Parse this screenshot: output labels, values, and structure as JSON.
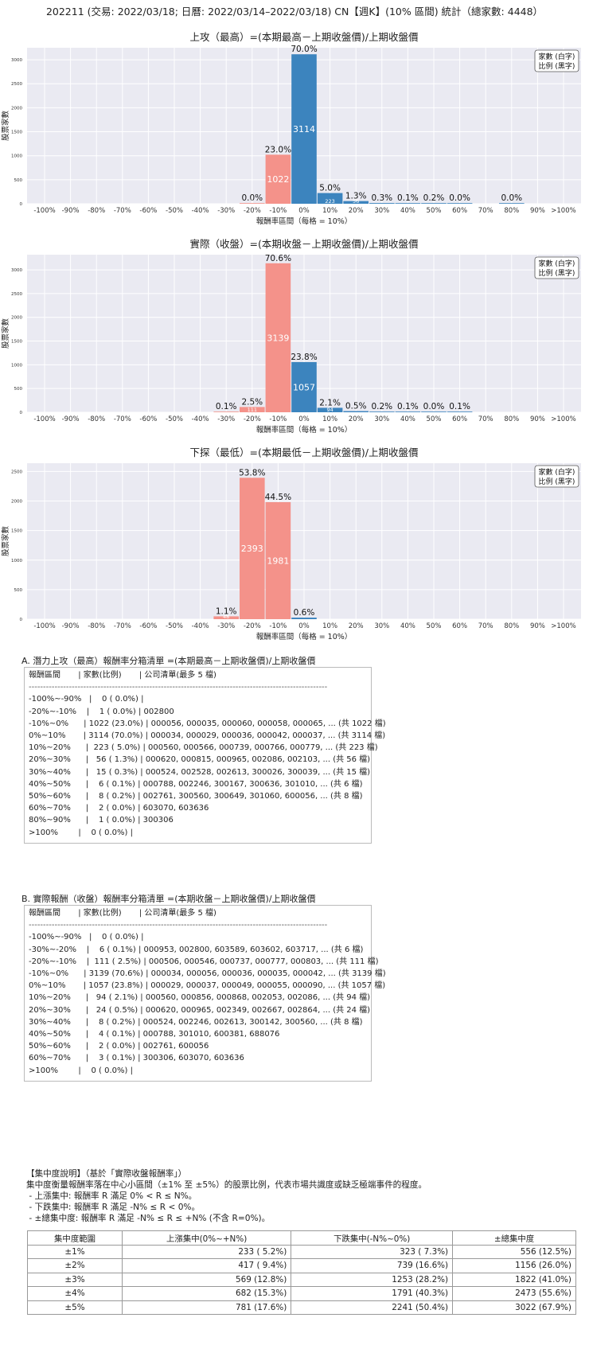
{
  "page_title": "202211 (交易: 2022/03/18; 日曆: 2022/03/14–2022/03/18) CN【週K】(10% 區間) 統計（總家數: 4448）",
  "legend_text": [
    "家數 (白字)",
    "比例 (黑字)"
  ],
  "colors": {
    "negative": "#f4928a",
    "positive": "#3c84be",
    "plot_bg": "#eaeaf2",
    "grid": "#ffffff"
  },
  "chart_data": [
    {
      "type": "bar",
      "title": "上攻（最高）=(本期最高－上期收盤價)/上期收盤價",
      "xlabel": "報酬率區間（每格 = 10%）",
      "ylabel": "股票家數",
      "ylim": [
        0,
        3250
      ],
      "yticks": [
        0,
        500,
        1000,
        1500,
        2000,
        2500,
        3000
      ],
      "xticks": [
        "-100%",
        "-90%",
        "-80%",
        "-70%",
        "-60%",
        "-50%",
        "-40%",
        "-30%",
        "-20%",
        "-10%",
        "0%",
        "10%",
        "20%",
        "30%",
        "40%",
        "50%",
        "60%",
        "70%",
        "80%",
        "90%",
        ">100%"
      ],
      "grid": true,
      "legend": "top-right",
      "bars": [
        {
          "bin": -2,
          "value": 1,
          "pct": "0.0%",
          "count": "1"
        },
        {
          "bin": -1,
          "value": 1022,
          "pct": "23.0%",
          "count": "1022"
        },
        {
          "bin": 0,
          "value": 3114,
          "pct": "70.0%",
          "count": "3114"
        },
        {
          "bin": 1,
          "value": 223,
          "pct": "5.0%",
          "count": "223"
        },
        {
          "bin": 2,
          "value": 56,
          "pct": "1.3%",
          "count": "56"
        },
        {
          "bin": 3,
          "value": 15,
          "pct": "0.3%",
          "count": ""
        },
        {
          "bin": 4,
          "value": 6,
          "pct": "0.1%",
          "count": ""
        },
        {
          "bin": 5,
          "value": 8,
          "pct": "0.2%",
          "count": ""
        },
        {
          "bin": 6,
          "value": 2,
          "pct": "0.0%",
          "count": ""
        },
        {
          "bin": 8,
          "value": 1,
          "pct": "0.0%",
          "count": ""
        }
      ]
    },
    {
      "type": "bar",
      "title": "實際（收盤）=(本期收盤－上期收盤價)/上期收盤價",
      "xlabel": "報酬率區間（每格 = 10%）",
      "ylabel": "股票家數",
      "ylim": [
        0,
        3320
      ],
      "yticks": [
        0,
        500,
        1000,
        1500,
        2000,
        2500,
        3000
      ],
      "xticks": [
        "-100%",
        "-90%",
        "-80%",
        "-70%",
        "-60%",
        "-50%",
        "-40%",
        "-30%",
        "-20%",
        "-10%",
        "0%",
        "10%",
        "20%",
        "30%",
        "40%",
        "50%",
        "60%",
        "70%",
        "80%",
        "90%",
        ">100%"
      ],
      "grid": true,
      "legend": "top-right",
      "bars": [
        {
          "bin": -3,
          "value": 6,
          "pct": "0.1%",
          "count": ""
        },
        {
          "bin": -2,
          "value": 111,
          "pct": "2.5%",
          "count": "111"
        },
        {
          "bin": -1,
          "value": 3139,
          "pct": "70.6%",
          "count": "3139"
        },
        {
          "bin": 0,
          "value": 1057,
          "pct": "23.8%",
          "count": "1057"
        },
        {
          "bin": 1,
          "value": 94,
          "pct": "2.1%",
          "count": "94"
        },
        {
          "bin": 2,
          "value": 24,
          "pct": "0.5%",
          "count": ""
        },
        {
          "bin": 3,
          "value": 8,
          "pct": "0.2%",
          "count": ""
        },
        {
          "bin": 4,
          "value": 4,
          "pct": "0.1%",
          "count": ""
        },
        {
          "bin": 5,
          "value": 2,
          "pct": "0.0%",
          "count": ""
        },
        {
          "bin": 6,
          "value": 3,
          "pct": "0.1%",
          "count": ""
        }
      ]
    },
    {
      "type": "bar",
      "title": "下探（最低）=(本期最低－上期收盤價)/上期收盤價",
      "xlabel": "報酬率區間（每格 = 10%）",
      "ylabel": "股票家數",
      "ylim": [
        0,
        2640
      ],
      "yticks": [
        0,
        500,
        1000,
        1500,
        2000,
        2500
      ],
      "xticks": [
        "-100%",
        "-90%",
        "-80%",
        "-70%",
        "-60%",
        "-50%",
        "-40%",
        "-30%",
        "-20%",
        "-10%",
        "0%",
        "10%",
        "20%",
        "30%",
        "40%",
        "50%",
        "60%",
        "70%",
        "80%",
        "90%",
        ">100%"
      ],
      "grid": true,
      "legend": "top-right",
      "bars": [
        {
          "bin": -3,
          "value": 48,
          "pct": "1.1%",
          "count": "48"
        },
        {
          "bin": -2,
          "value": 2393,
          "pct": "53.8%",
          "count": "2393"
        },
        {
          "bin": -1,
          "value": 1981,
          "pct": "44.5%",
          "count": "1981"
        },
        {
          "bin": 0,
          "value": 26,
          "pct": "0.6%",
          "count": ""
        }
      ]
    }
  ],
  "list_a": {
    "heading": "A. 潛力上攻（最高）報酬率分箱清單 =(本期最高－上期收盤價)/上期收盤價",
    "header": "報酬區間       | 家數(比例)       | 公司清單(最多 5 檔)",
    "separator": "--------------------------------------------------------------------------------------------------------",
    "lines": [
      "-100%~-90%   |    0 ( 0.0%) |",
      "-20%~-10%    |    1 ( 0.0%) | 002800",
      "-10%~0%      | 1022 (23.0%) | 000056, 000035, 000060, 000058, 000065, ... (共 1022 檔)",
      "0%~10%       | 3114 (70.0%) | 000034, 000029, 000036, 000042, 000037, ... (共 3114 檔)",
      "10%~20%      |  223 ( 5.0%) | 000560, 000566, 000739, 000766, 000779, ... (共 223 檔)",
      "20%~30%      |   56 ( 1.3%) | 000620, 000815, 000965, 002086, 002103, ... (共 56 檔)",
      "30%~40%      |   15 ( 0.3%) | 000524, 002528, 002613, 300026, 300039, ... (共 15 檔)",
      "40%~50%      |    6 ( 0.1%) | 000788, 002246, 300167, 300636, 301010, ... (共 6 檔)",
      "50%~60%      |    8 ( 0.2%) | 002761, 300560, 300649, 301060, 600056, ... (共 8 檔)",
      "60%~70%      |    2 ( 0.0%) | 603070, 603636",
      "80%~90%      |    1 ( 0.0%) | 300306",
      ">100%        |    0 ( 0.0%) |"
    ]
  },
  "list_b": {
    "heading": "B. 實際報酬（收盤）報酬率分箱清單 =(本期收盤－上期收盤價)/上期收盤價",
    "header": "報酬區間       | 家數(比例)       | 公司清單(最多 5 檔)",
    "separator": "--------------------------------------------------------------------------------------------------------",
    "lines": [
      "-100%~-90%   |    0 ( 0.0%) |",
      "-30%~-20%    |    6 ( 0.1%) | 000953, 002800, 603589, 603602, 603717, ... (共 6 檔)",
      "-20%~-10%    |  111 ( 2.5%) | 000506, 000546, 000737, 000777, 000803, ... (共 111 檔)",
      "-10%~0%      | 3139 (70.6%) | 000034, 000056, 000036, 000035, 000042, ... (共 3139 檔)",
      "0%~10%       | 1057 (23.8%) | 000029, 000037, 000049, 000055, 000090, ... (共 1057 檔)",
      "10%~20%      |   94 ( 2.1%) | 000560, 000856, 000868, 002053, 002086, ... (共 94 檔)",
      "20%~30%      |   24 ( 0.5%) | 000620, 000965, 002349, 002667, 002864, ... (共 24 檔)",
      "30%~40%      |    8 ( 0.2%) | 000524, 002246, 002613, 300142, 300560, ... (共 8 檔)",
      "40%~50%      |    4 ( 0.1%) | 000788, 301010, 600381, 688076",
      "50%~60%      |    2 ( 0.0%) | 002761, 600056",
      "60%~70%      |    3 ( 0.1%) | 300306, 603070, 603636",
      ">100%        |    0 ( 0.0%) |"
    ]
  },
  "concentration": {
    "note_lines": [
      "【集中度說明】（基於「實際收盤報酬率」）",
      "集中度衡量報酬率落在中心小區間（±1% 至 ±5%）的股票比例，代表市場共識度或缺乏極端事件的程度。",
      " - 上漲集中: 報酬率 R 滿足 0% < R ≤ N%。",
      " - 下跌集中: 報酬率 R 滿足 -N% ≤ R < 0%。",
      " - ±總集中度: 報酬率 R 滿足 -N% ≤ R ≤ +N% (不含 R=0%)。"
    ],
    "headers": [
      "集中度範圍",
      "上漲集中(0%~+N%)",
      "下跌集中(-N%~0%)",
      "±總集中度"
    ],
    "rows": [
      [
        "±1%",
        "233 ( 5.2%)",
        "323 ( 7.3%)",
        "556 (12.5%)"
      ],
      [
        "±2%",
        "417 ( 9.4%)",
        "739 (16.6%)",
        "1156 (26.0%)"
      ],
      [
        "±3%",
        "569 (12.8%)",
        "1253 (28.2%)",
        "1822 (41.0%)"
      ],
      [
        "±4%",
        "682 (15.3%)",
        "1791 (40.3%)",
        "2473 (55.6%)"
      ],
      [
        "±5%",
        "781 (17.6%)",
        "2241 (50.4%)",
        "3022 (67.9%)"
      ]
    ]
  }
}
